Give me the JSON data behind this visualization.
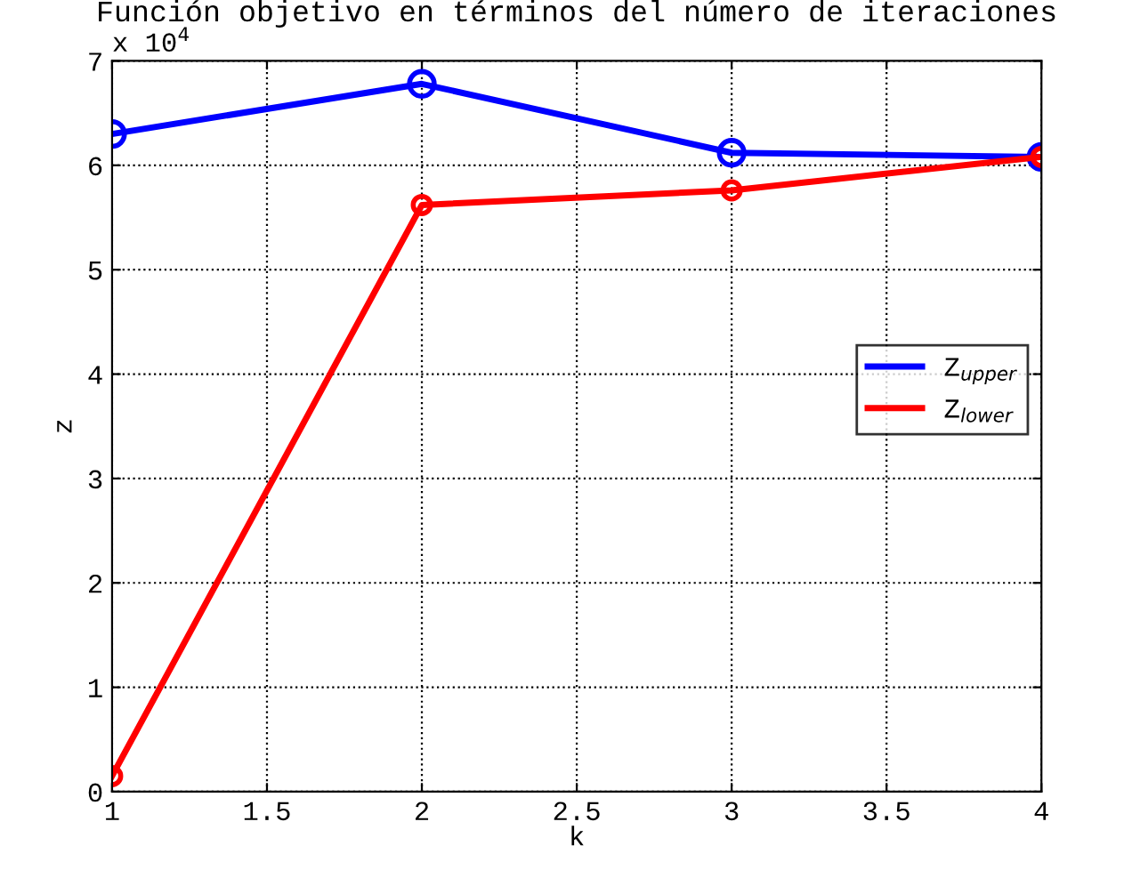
{
  "chart_data": {
    "type": "line",
    "title": "Función objetivo en términos del número de iteraciones",
    "xlabel": "k",
    "ylabel": "z",
    "x": [
      1,
      2,
      3,
      4
    ],
    "series": [
      {
        "name": "Z$_{upper}$",
        "color": "#0000ff",
        "values": [
          6.3,
          6.78,
          6.12,
          6.08
        ]
      },
      {
        "name": "Z$_{lower}$",
        "color": "#ff0000",
        "values": [
          0.15,
          5.62,
          5.76,
          6.08
        ]
      }
    ],
    "xlim": [
      1,
      4
    ],
    "xticks": [
      1,
      1.5,
      2,
      2.5,
      3,
      3.5,
      4
    ],
    "ylim": [
      0,
      7
    ],
    "yticks": [
      0,
      1,
      2,
      3,
      4,
      5,
      6,
      7
    ],
    "annotations": [
      "x 10$^{4}$"
    ],
    "grid": true,
    "legend": "right",
    "marker": "circle",
    "line_style": "solid"
  }
}
